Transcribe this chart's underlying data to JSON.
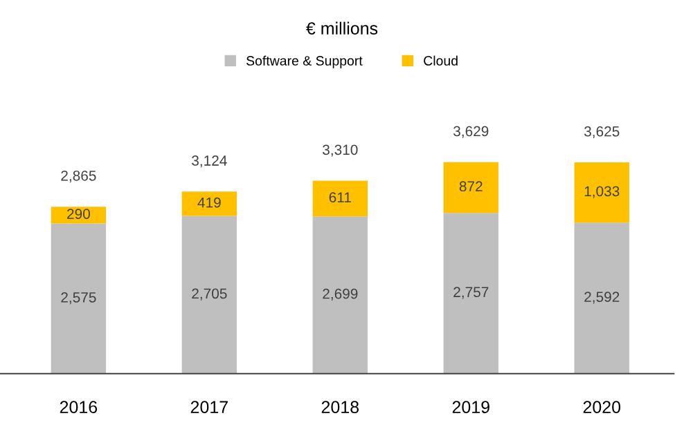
{
  "chart_data": {
    "type": "bar",
    "title": "€ millions",
    "stacked": true,
    "legend": "top",
    "categories": [
      "2016",
      "2017",
      "2018",
      "2019",
      "2020"
    ],
    "series": [
      {
        "name": "Software & Support",
        "color": "#bfbfbf",
        "values": [
          2575,
          2705,
          2699,
          2757,
          2592
        ],
        "value_labels": [
          "2,575",
          "2,705",
          "2,699",
          "2,757",
          "2,592"
        ]
      },
      {
        "name": "Cloud",
        "color": "#ffc000",
        "values": [
          290,
          419,
          611,
          872,
          1033
        ],
        "value_labels": [
          "290",
          "419",
          "611",
          "872",
          "1,033"
        ]
      }
    ],
    "totals": [
      "2,865",
      "3,124",
      "3,310",
      "3,629",
      "3,625"
    ],
    "grid": false
  }
}
